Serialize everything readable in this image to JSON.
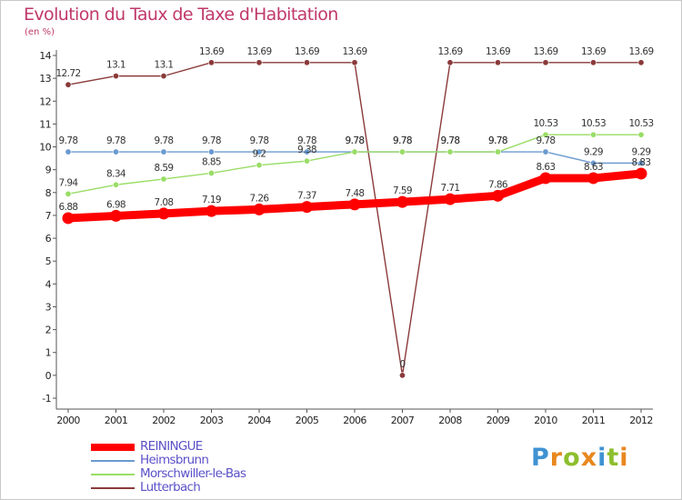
{
  "header": {
    "title": "Evolution du Taux de Taxe d'Habitation",
    "subtitle": "(en %)"
  },
  "logo": {
    "text": "Proxiti",
    "letters": [
      "P",
      "r",
      "o",
      "x",
      "i",
      "t",
      "i"
    ],
    "colors": [
      "#3f92d2",
      "#e8871e",
      "#8dbf2e",
      "#e8871e",
      "#3f92d2",
      "#8dbf2e",
      "#e8871e"
    ]
  },
  "chart_data": {
    "type": "line",
    "title": "Evolution du Taux de Taxe d'Habitation",
    "subtitle": "(en %)",
    "xlabel": "",
    "ylabel": "(en %)",
    "ylim": [
      -1,
      14
    ],
    "x": [
      "2000",
      "2001",
      "2002",
      "2003",
      "2004",
      "2005",
      "2006",
      "2007",
      "2008",
      "2009",
      "2010",
      "2011",
      "2012"
    ],
    "y_ticks": [
      "-1",
      "0",
      "1",
      "2",
      "3",
      "4",
      "5",
      "6",
      "7",
      "8",
      "9",
      "10",
      "11",
      "12",
      "13",
      "14"
    ],
    "grid": false,
    "legend_position": "bottom-left",
    "series": [
      {
        "name": "REININGUE",
        "color": "#ff0000",
        "width": "thick",
        "values": [
          6.88,
          6.98,
          7.08,
          7.19,
          7.26,
          7.37,
          7.48,
          7.59,
          7.71,
          7.86,
          8.63,
          8.63,
          8.83
        ],
        "labels": [
          "6.88",
          "6.98",
          "7.08",
          "7.19",
          "7.26",
          "7.37",
          "7.48",
          "7.59",
          "7.71",
          "7.86",
          "8.63",
          "8.63",
          "8.83"
        ]
      },
      {
        "name": "Heimsbrunn",
        "color": "#6b9ad0",
        "width": "thin",
        "values": [
          9.78,
          9.78,
          9.78,
          9.78,
          9.78,
          9.78,
          9.78,
          9.78,
          9.78,
          9.78,
          9.78,
          9.29,
          9.29
        ],
        "labels": [
          "9.78",
          "9.78",
          "9.78",
          "9.78",
          "9.78",
          "9.78",
          "9.78",
          "9.78",
          "9.78",
          "9.78",
          "9.78",
          "9.29",
          "9.29"
        ]
      },
      {
        "name": "Morschwiller-le-Bas",
        "color": "#99dd66",
        "width": "thin",
        "values": [
          7.94,
          8.34,
          8.59,
          8.85,
          9.2,
          9.38,
          9.78,
          9.78,
          9.78,
          9.78,
          10.53,
          10.53,
          10.53
        ],
        "labels": [
          "7.94",
          "8.34",
          "8.59",
          "8.85",
          "9.2",
          "9.38",
          "9.78",
          "9.78",
          "9.78",
          "9.78",
          "10.53",
          "10.53",
          "10.53"
        ]
      },
      {
        "name": "Lutterbach",
        "color": "#8b3a3a",
        "width": "thin",
        "values": [
          12.72,
          13.1,
          13.1,
          13.69,
          13.69,
          13.69,
          13.69,
          0,
          13.69,
          13.69,
          13.69,
          13.69,
          13.69
        ],
        "labels": [
          "12.72",
          "13.1",
          "13.1",
          "13.69",
          "13.69",
          "13.69",
          "13.69",
          "0",
          "13.69",
          "13.69",
          "13.69",
          "13.69",
          "13.69"
        ]
      }
    ]
  }
}
